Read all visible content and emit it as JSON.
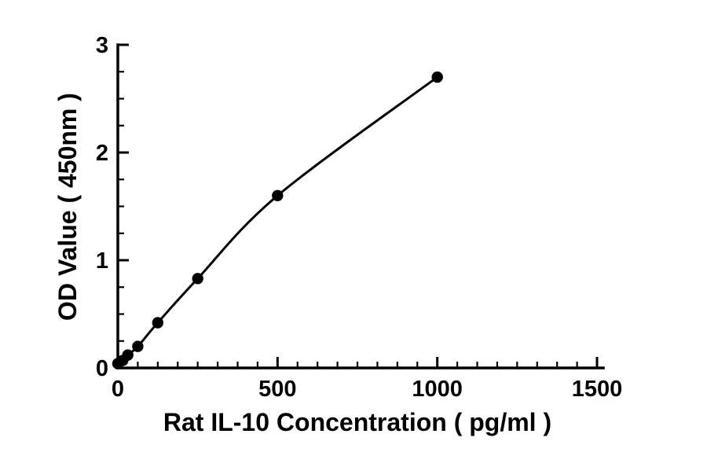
{
  "chart_data": {
    "type": "scatter",
    "title": "",
    "xlabel": "Rat IL-10 Concentration ( pg/ml )",
    "ylabel": "OD Value ( 450nm )",
    "xlim": [
      0,
      1500
    ],
    "ylim": [
      0,
      3
    ],
    "x_major_ticks": [
      0,
      500,
      1000,
      1500
    ],
    "x_minor_step": 62.5,
    "y_major_ticks": [
      0,
      1,
      2,
      3
    ],
    "y_minor_step": 0.25,
    "grid": false,
    "legend": "none",
    "line_color": "#000000",
    "marker_color": "#000000",
    "series": [
      {
        "name": "standard-curve",
        "x": [
          0,
          15.6,
          31.2,
          62.5,
          125,
          250,
          500,
          1000
        ],
        "y": [
          0.04,
          0.07,
          0.12,
          0.2,
          0.42,
          0.83,
          1.6,
          2.7
        ]
      }
    ]
  }
}
